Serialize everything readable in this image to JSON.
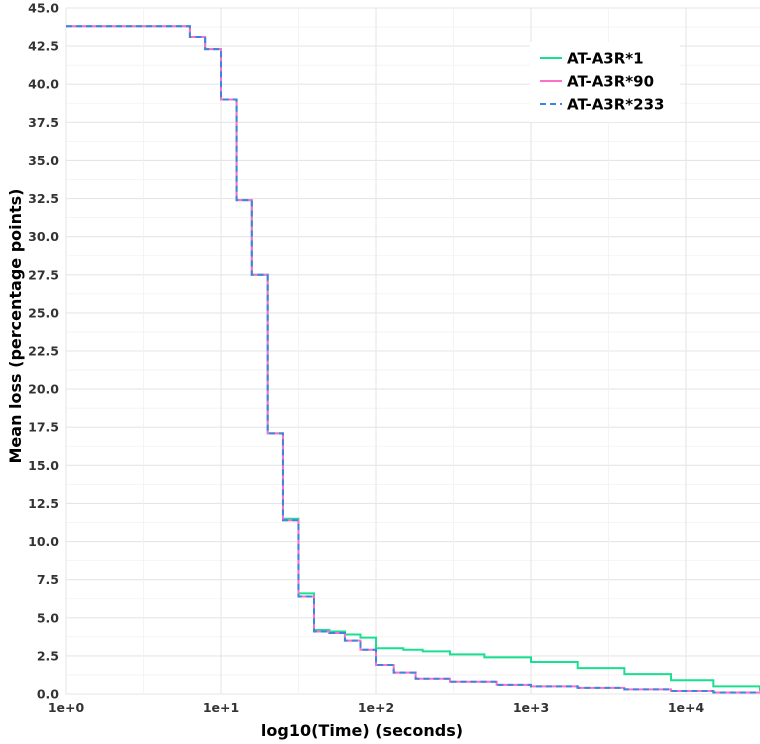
{
  "chart_data": {
    "type": "line",
    "title": "",
    "xlabel": "log10(Time) (seconds)",
    "ylabel": "Mean loss (percentage points)",
    "x_scale": "log",
    "xlim": [
      1,
      30000
    ],
    "ylim": [
      0,
      45
    ],
    "x_ticks": [
      1,
      10,
      100,
      1000,
      10000
    ],
    "x_tick_labels": [
      "1e+0",
      "1e+1",
      "1e+2",
      "1e+3",
      "1e+4"
    ],
    "y_ticks": [
      0,
      2.5,
      5,
      7.5,
      10,
      12.5,
      15,
      17.5,
      20,
      22.5,
      25,
      27.5,
      30,
      32.5,
      35,
      37.5,
      40,
      42.5,
      45
    ],
    "y_tick_labels": [
      "0.0",
      "2.5",
      "5.0",
      "7.5",
      "10.0",
      "12.5",
      "15.0",
      "17.5",
      "20.0",
      "22.5",
      "25.0",
      "27.5",
      "30.0",
      "32.5",
      "35.0",
      "37.5",
      "40.0",
      "42.5",
      "45.0"
    ],
    "grid": true,
    "legend_position": "top-right",
    "series": [
      {
        "name": "AT-A3R*1",
        "color": "#19e08f",
        "style": "solid",
        "step": true,
        "x": [
          1,
          6.3,
          7.9,
          10,
          12.6,
          15.8,
          20,
          25.1,
          31.6,
          39.8,
          50,
          63,
          79.4,
          100,
          150,
          200,
          300,
          500,
          1000,
          2000,
          4000,
          8000,
          15000,
          30000
        ],
        "y": [
          43.8,
          43.1,
          42.3,
          39.0,
          32.4,
          27.5,
          17.1,
          11.5,
          6.6,
          4.2,
          4.1,
          3.9,
          3.7,
          3.0,
          2.9,
          2.8,
          2.6,
          2.4,
          2.1,
          1.7,
          1.3,
          0.9,
          0.5,
          0.2
        ]
      },
      {
        "name": "AT-A3R*90",
        "color": "#ff6fc8",
        "style": "solid",
        "step": true,
        "x": [
          1,
          6.3,
          7.9,
          10,
          12.6,
          15.8,
          20,
          25.1,
          31.6,
          39.8,
          50,
          63,
          79.4,
          100,
          130,
          180,
          300,
          600,
          1000,
          2000,
          4000,
          8000,
          15000,
          30000
        ],
        "y": [
          43.8,
          43.1,
          42.3,
          39.0,
          32.4,
          27.5,
          17.1,
          11.4,
          6.4,
          4.1,
          4.0,
          3.5,
          2.9,
          1.9,
          1.4,
          1.0,
          0.8,
          0.6,
          0.5,
          0.4,
          0.3,
          0.2,
          0.1,
          0.1
        ]
      },
      {
        "name": "AT-A3R*233",
        "color": "#3a86e0",
        "style": "dashed",
        "step": true,
        "x": [
          1,
          6.3,
          7.9,
          10,
          12.6,
          15.8,
          20,
          25.1,
          31.6,
          39.8,
          50,
          63,
          79.4,
          100,
          130,
          180,
          300,
          600,
          1000,
          2000,
          4000,
          8000,
          15000,
          30000
        ],
        "y": [
          43.8,
          43.1,
          42.3,
          39.0,
          32.4,
          27.5,
          17.1,
          11.4,
          6.4,
          4.1,
          4.0,
          3.5,
          2.9,
          1.9,
          1.4,
          1.0,
          0.8,
          0.6,
          0.5,
          0.4,
          0.3,
          0.2,
          0.1,
          0.1
        ]
      }
    ]
  }
}
